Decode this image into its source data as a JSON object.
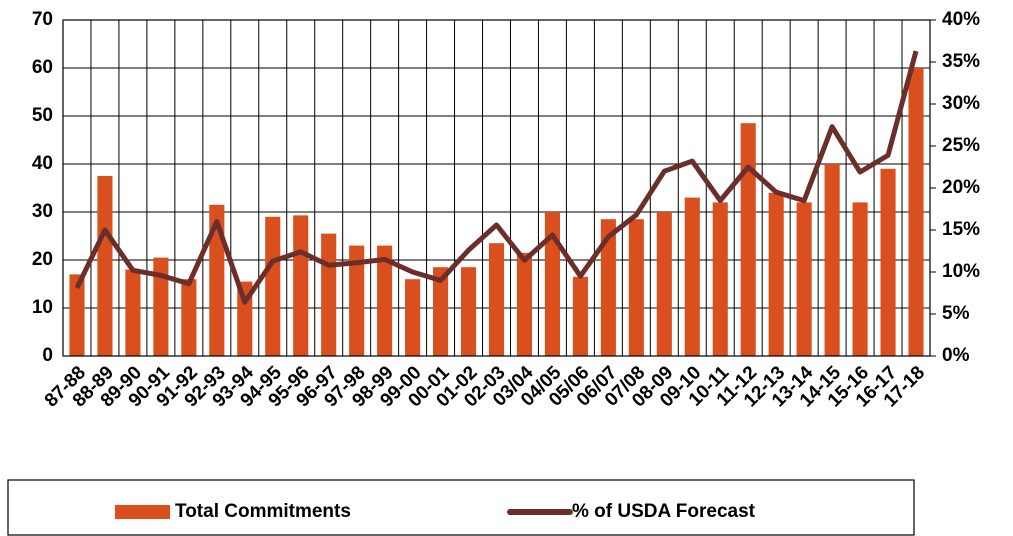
{
  "chart_data": {
    "type": "bar_line",
    "categories": [
      "87-88",
      "88-89",
      "89-90",
      "90-91",
      "91-92",
      "92-93",
      "93-94",
      "94-95",
      "95-96",
      "96-97",
      "97-98",
      "98-99",
      "99-00",
      "00-01",
      "01-02",
      "02-03",
      "03/04",
      "04/05",
      "05/06",
      "06/07",
      "07/08",
      "08-09",
      "09-10",
      "10-11",
      "11-12",
      "12-13",
      "13-14",
      "14-15",
      "15-16",
      "16-17",
      "17-18"
    ],
    "series": [
      {
        "name": "Total Commitments",
        "type": "bar",
        "color": "#d9501e",
        "values": [
          17,
          37.5,
          18,
          20.5,
          16,
          31.5,
          15.5,
          29,
          29.3,
          25.5,
          23,
          23,
          16,
          18.5,
          18.5,
          23.5,
          21.5,
          30,
          16.5,
          28.5,
          28.5,
          30,
          33,
          32,
          48.5,
          34,
          32,
          40,
          32,
          39,
          60
        ]
      },
      {
        "name": "% of USDA Forecast",
        "type": "line",
        "axis": "y2",
        "color": "#6b2e2a",
        "values": [
          8.1,
          15,
          10.2,
          9.6,
          8.6,
          16,
          6.4,
          11.3,
          12.4,
          10.8,
          11.1,
          11.5,
          10,
          9,
          12.6,
          15.6,
          11.4,
          14.4,
          9.5,
          14.2,
          16.8,
          22,
          23.2,
          18.5,
          22.5,
          19.5,
          18.5,
          27.3,
          21.9,
          23.9,
          36.3
        ]
      }
    ],
    "ylim": [
      0,
      70
    ],
    "yticks": [
      0,
      10,
      20,
      30,
      40,
      50,
      60,
      70
    ],
    "y2lim": [
      0,
      40
    ],
    "y2ticks": [
      {
        "value": 0,
        "label": "0%"
      },
      {
        "value": 5,
        "label": "5%"
      },
      {
        "value": 10,
        "label": "10%"
      },
      {
        "value": 15,
        "label": "15%"
      },
      {
        "value": 20,
        "label": "20%"
      },
      {
        "value": 25,
        "label": "25%"
      },
      {
        "value": 30,
        "label": "30%"
      },
      {
        "value": 35,
        "label": "35%"
      },
      {
        "value": 40,
        "label": "40%"
      }
    ],
    "grid": true
  }
}
